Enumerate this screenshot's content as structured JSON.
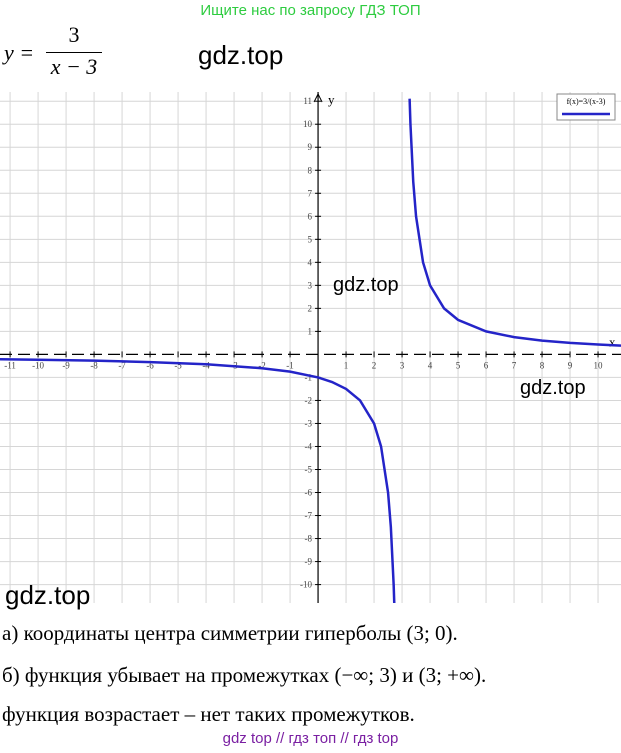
{
  "header": "Ищите нас по запросу ГДЗ ТОП",
  "formula": {
    "lhs": "y =",
    "numerator": "3",
    "denominator": "x − 3"
  },
  "watermarks": [
    "gdz.top",
    "gdz.top",
    "gdz.top",
    "gdz.top"
  ],
  "graph": {
    "type": "line",
    "x_label": "x",
    "y_label": "y",
    "grid": true,
    "xlim": [
      -11.36,
      10.82
    ],
    "ylim": [
      -10.8,
      11.4
    ],
    "xticks": [
      -11,
      -10,
      -9,
      -8,
      -7,
      -6,
      -5,
      -4,
      -3,
      -2,
      -1,
      1,
      2,
      3,
      4,
      5,
      6,
      7,
      8,
      9,
      10
    ],
    "yticks": [
      11,
      10,
      9,
      8,
      7,
      6,
      5,
      4,
      3,
      2,
      1,
      -1,
      -2,
      -3,
      -4,
      -5,
      -6,
      -7,
      -8,
      -9,
      -10
    ],
    "series": [
      {
        "name": "f(x)=3/(x-3)",
        "color": "#2424c8",
        "x": [
          -11.36,
          -10,
          -8,
          -6,
          -4,
          -2,
          -1,
          0,
          0.5,
          1,
          1.5,
          2,
          2.25,
          2.5,
          2.6,
          2.7,
          2.727,
          3,
          3.27,
          3.3,
          3.4,
          3.5,
          3.75,
          4,
          4.5,
          5,
          6,
          7,
          8,
          9,
          10,
          10.82
        ],
        "values": [
          -0.2103,
          -0.2308,
          -0.2727,
          -0.3333,
          -0.4286,
          -0.6,
          -0.75,
          -1,
          -1.2,
          -1.5,
          -2,
          -3,
          -4,
          -6,
          -7.5,
          -10,
          -11,
          null,
          11.11,
          10,
          7.5,
          6,
          4,
          3,
          2,
          1.5,
          1,
          0.75,
          0.6,
          0.5,
          0.4286,
          0.3836
        ]
      }
    ]
  },
  "answers": [
    "а) координаты центра симметрии гиперболы (3; 0).",
    "б) функция убывает на промежутках (−∞; 3) и (3; +∞).",
    "функция возрастает – нет таких промежутков."
  ],
  "footer": "gdz top  //  гдз топ  //  гдз top"
}
